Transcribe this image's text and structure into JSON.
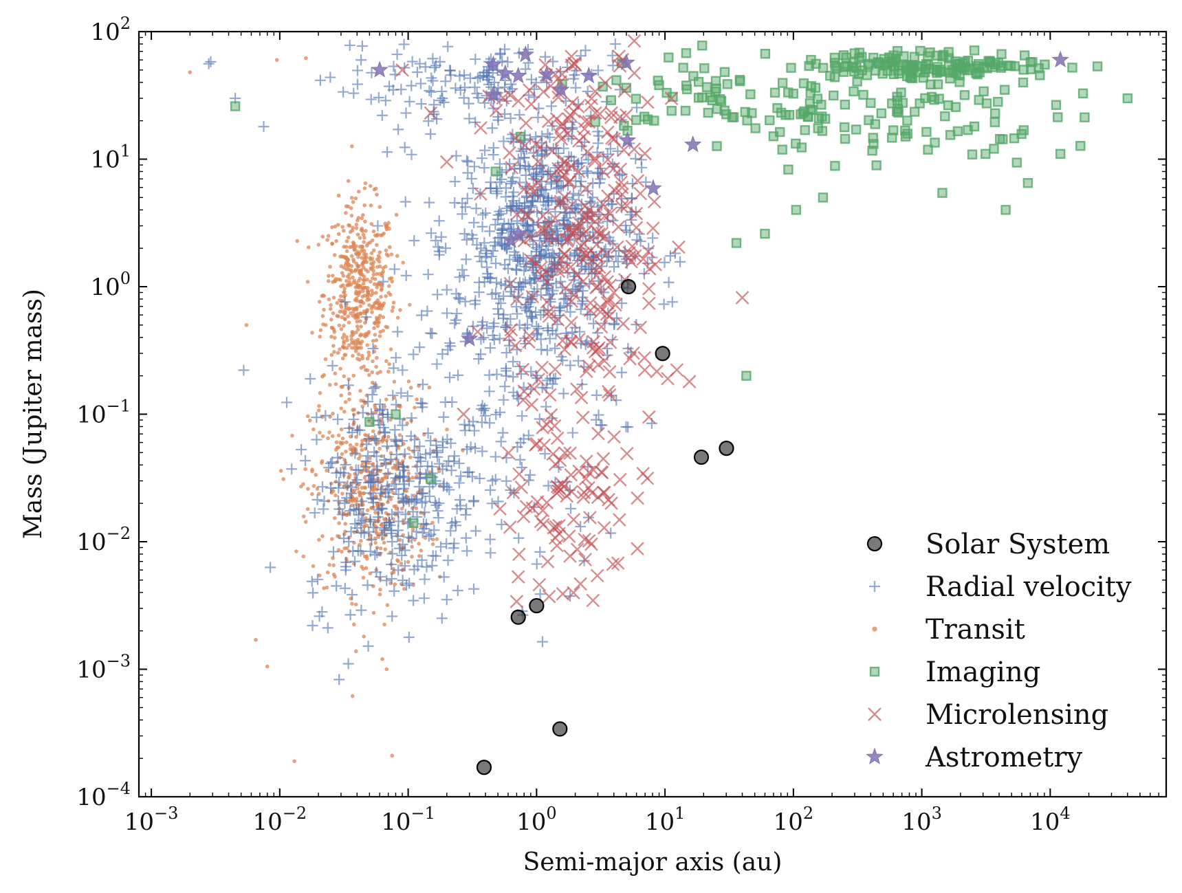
{
  "chart_data": {
    "type": "scatter",
    "title": "",
    "xlabel": "Semi-major axis (au)",
    "ylabel": "Mass (Jupiter mass)",
    "x_scale": "log",
    "y_scale": "log",
    "xlim": [
      0.0008,
      80000
    ],
    "ylim": [
      0.0001,
      100
    ],
    "x_tick_labels": [
      {
        "base": "10",
        "exp": "−3",
        "value": 0.001
      },
      {
        "base": "10",
        "exp": "−2",
        "value": 0.01
      },
      {
        "base": "10",
        "exp": "−1",
        "value": 0.1
      },
      {
        "base": "10",
        "exp": "0",
        "value": 1
      },
      {
        "base": "10",
        "exp": "1",
        "value": 10
      },
      {
        "base": "10",
        "exp": "2",
        "value": 100
      },
      {
        "base": "10",
        "exp": "3",
        "value": 1000
      },
      {
        "base": "10",
        "exp": "4",
        "value": 10000
      }
    ],
    "y_tick_labels": [
      {
        "base": "10",
        "exp": "−4",
        "value": 0.0001
      },
      {
        "base": "10",
        "exp": "−3",
        "value": 0.001
      },
      {
        "base": "10",
        "exp": "−2",
        "value": 0.01
      },
      {
        "base": "10",
        "exp": "−1",
        "value": 0.1
      },
      {
        "base": "10",
        "exp": "0",
        "value": 1
      },
      {
        "base": "10",
        "exp": "1",
        "value": 10
      },
      {
        "base": "10",
        "exp": "2",
        "value": 100
      }
    ],
    "grid": false,
    "legend_position": "lower-right",
    "series": [
      {
        "name": "Solar System",
        "marker": "circle",
        "color": "#333333",
        "points": [
          [
            0.39,
            0.00017
          ],
          [
            0.72,
            0.00256
          ],
          [
            1.0,
            0.00315
          ],
          [
            1.52,
            0.00034
          ],
          [
            5.2,
            1.0
          ],
          [
            9.58,
            0.299
          ],
          [
            19.2,
            0.046
          ],
          [
            30.1,
            0.054
          ]
        ]
      },
      {
        "name": "Radial velocity",
        "marker": "plus",
        "color": "#4c72b0",
        "clusters": [
          {
            "cx": 1.2,
            "cy": 2.5,
            "sx": 0.35,
            "sy": 0.5,
            "n": 650
          },
          {
            "cx": 0.08,
            "cy": 0.025,
            "sx": 0.35,
            "sy": 0.45,
            "n": 330
          },
          {
            "cx": 0.6,
            "cy": 0.3,
            "sx": 0.45,
            "sy": 0.9,
            "n": 220
          },
          {
            "cx": 0.3,
            "cy": 40,
            "sx": 0.45,
            "sy": 0.15,
            "n": 120
          }
        ],
        "points": [
          [
            0.0029,
            58
          ],
          [
            0.0028,
            56
          ],
          [
            0.0045,
            30
          ],
          [
            0.0075,
            18
          ],
          [
            0.029,
            0.00083
          ],
          [
            0.018,
            0.0022
          ],
          [
            0.075,
            0.0026
          ],
          [
            1.2,
            40
          ],
          [
            3.9,
            65
          ],
          [
            4.1,
            80
          ]
        ]
      },
      {
        "name": "Transit",
        "marker": "dot",
        "color": "#dd8452",
        "clusters": [
          {
            "cx": 0.042,
            "cy": 0.9,
            "sx": 0.14,
            "sy": 0.35,
            "n": 520
          },
          {
            "cx": 0.05,
            "cy": 0.025,
            "sx": 0.23,
            "sy": 0.4,
            "n": 520
          }
        ],
        "points": [
          [
            0.002,
            48
          ],
          [
            0.0095,
            60
          ],
          [
            0.016,
            62
          ],
          [
            0.0055,
            0.5
          ],
          [
            0.0065,
            0.0017
          ],
          [
            0.008,
            0.00105
          ],
          [
            0.013,
            0.00019
          ],
          [
            0.075,
            0.00021
          ],
          [
            0.068,
            0.001
          ],
          [
            0.063,
            0.0012
          ]
        ]
      },
      {
        "name": "Imaging",
        "marker": "square",
        "color": "#55a868",
        "clusters": [
          {
            "cx": 1200,
            "cy": 55,
            "sx": 0.5,
            "sy": 0.05,
            "n": 140
          },
          {
            "cx": 600,
            "cy": 22,
            "sx": 0.6,
            "sy": 0.2,
            "n": 100
          },
          {
            "cx": 25,
            "cy": 30,
            "sx": 0.5,
            "sy": 0.2,
            "n": 70
          }
        ],
        "points": [
          [
            0.0045,
            26
          ],
          [
            0.05,
            0.087
          ],
          [
            0.08,
            0.1
          ],
          [
            0.15,
            0.031
          ],
          [
            0.11,
            0.014
          ],
          [
            43,
            0.2
          ],
          [
            36,
            2.2
          ],
          [
            60,
            2.6
          ],
          [
            105,
            4
          ],
          [
            170,
            5
          ],
          [
            4500,
            4
          ],
          [
            12000,
            11
          ],
          [
            6700,
            6.5
          ],
          [
            40000,
            30
          ],
          [
            0.48,
            8
          ],
          [
            0.75,
            15
          ]
        ]
      },
      {
        "name": "Microlensing",
        "marker": "x",
        "color": "#c44e52",
        "clusters": [
          {
            "cx": 2.5,
            "cy": 1.5,
            "sx": 0.3,
            "sy": 0.6,
            "n": 200
          },
          {
            "cx": 2.0,
            "cy": 0.03,
            "sx": 0.28,
            "sy": 0.45,
            "n": 90
          },
          {
            "cx": 2.0,
            "cy": 25,
            "sx": 0.35,
            "sy": 0.3,
            "n": 60
          }
        ],
        "points": [
          [
            0.15,
            23
          ],
          [
            0.2,
            9.5
          ],
          [
            0.62,
            0.013
          ],
          [
            0.72,
            0.0053
          ],
          [
            1.05,
            0.0046
          ],
          [
            1.6,
            0.0039
          ],
          [
            40,
            0.82
          ],
          [
            10.5,
            0.19
          ],
          [
            15.5,
            0.18
          ],
          [
            7.5,
            0.095
          ],
          [
            0.09,
            50
          ],
          [
            0.27,
            0.1
          ]
        ]
      },
      {
        "name": "Astrometry",
        "marker": "star",
        "color": "#8172b3",
        "points": [
          [
            0.06,
            50
          ],
          [
            0.46,
            55
          ],
          [
            0.46,
            32
          ],
          [
            0.57,
            47
          ],
          [
            0.72,
            45
          ],
          [
            0.82,
            66
          ],
          [
            1.2,
            46
          ],
          [
            1.55,
            35
          ],
          [
            2.55,
            45
          ],
          [
            5.0,
            57
          ],
          [
            5.1,
            14
          ],
          [
            16.5,
            13
          ],
          [
            8.1,
            5.9
          ],
          [
            0.3,
            0.39
          ],
          [
            0.63,
            2.3
          ],
          [
            0.72,
            2.6
          ],
          [
            12000,
            60
          ]
        ]
      }
    ]
  }
}
